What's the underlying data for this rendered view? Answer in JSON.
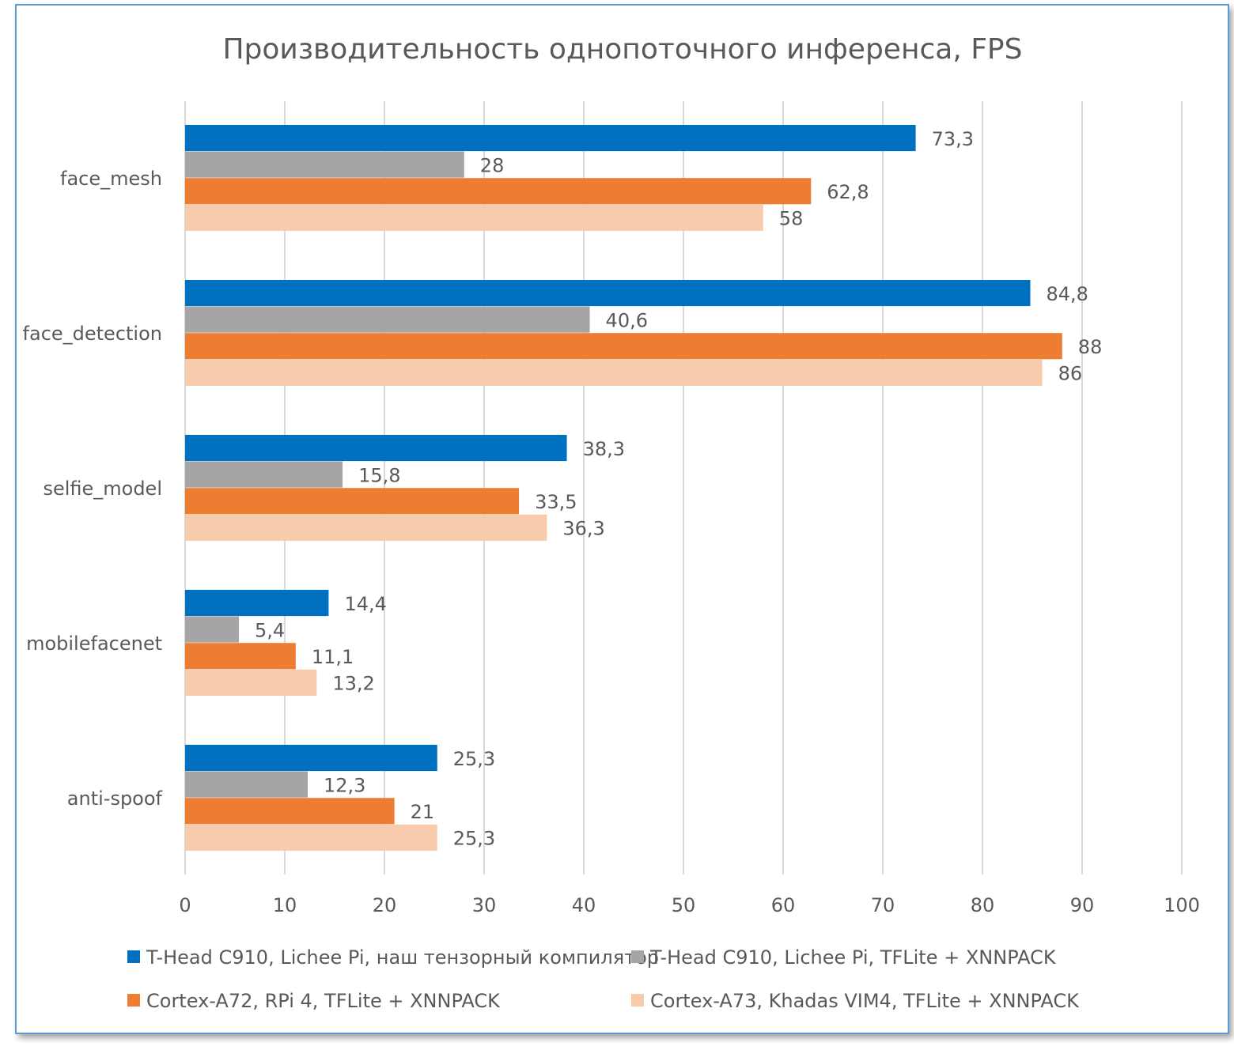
{
  "chart_data": {
    "type": "bar",
    "orientation": "horizontal",
    "title": "Производительность однопоточного инференса, FPS",
    "categories": [
      "face_mesh",
      "face_detection",
      "selfie_model",
      "mobilefacenet",
      "anti-spoof"
    ],
    "series": [
      {
        "name": "T-Head C910, Lichee Pi, наш тензорный компилятор",
        "color": "#0070c0",
        "values": [
          73.3,
          84.8,
          38.3,
          14.4,
          25.3
        ],
        "labels": [
          "73,3",
          "84,8",
          "38,3",
          "14,4",
          "25,3"
        ]
      },
      {
        "name": "T-Head C910, Lichee Pi, TFLite + XNNPACK",
        "color": "#a5a5a5",
        "values": [
          28,
          40.6,
          15.8,
          5.4,
          12.3
        ],
        "labels": [
          "28",
          "40,6",
          "15,8",
          "5,4",
          "12,3"
        ]
      },
      {
        "name": "Cortex-A72, RPi 4, TFLite + XNNPACK",
        "color": "#ed7d31",
        "values": [
          62.8,
          88,
          33.5,
          11.1,
          21
        ],
        "labels": [
          "62,8",
          "88",
          "33,5",
          "11,1",
          "21"
        ]
      },
      {
        "name": "Cortex-A73, Khadas VIM4, TFLite + XNNPACK",
        "color": "#f8cbad",
        "values": [
          58,
          86,
          36.3,
          13.2,
          25.3
        ],
        "labels": [
          "58",
          "86",
          "36,3",
          "13,2",
          "25,3"
        ]
      }
    ],
    "xlim": [
      0,
      100
    ],
    "xticks": [
      "0",
      "10",
      "20",
      "30",
      "40",
      "50",
      "60",
      "70",
      "80",
      "90",
      "100"
    ],
    "grid": true,
    "legend_position": "bottom",
    "frame_color": "#5b9bd5"
  }
}
